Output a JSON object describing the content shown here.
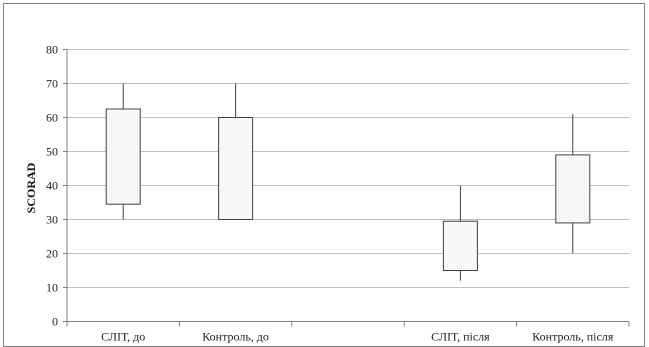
{
  "chart_data": {
    "type": "box",
    "title": "",
    "xlabel": "",
    "ylabel": "SCORAD",
    "ylim": [
      0,
      80
    ],
    "yticks": [
      0,
      10,
      20,
      30,
      40,
      50,
      60,
      70,
      80
    ],
    "grid": true,
    "legend": "none",
    "categories": [
      "СЛІТ, до",
      "Контроль, до",
      "",
      "СЛІТ, після",
      "Контроль, після"
    ],
    "boxes": [
      {
        "category": "СЛІТ, до",
        "min": 30,
        "q1": 34.5,
        "q3": 62.5,
        "max": 70
      },
      {
        "category": "Контроль, до",
        "min": 30,
        "q1": 30,
        "q3": 60,
        "max": 70
      },
      {
        "category": "СЛІТ, після",
        "min": 12,
        "q1": 15,
        "q3": 29.5,
        "max": 40
      },
      {
        "category": "Контроль, після",
        "min": 20,
        "q1": 29,
        "q3": 49,
        "max": 61
      }
    ],
    "colors": {
      "box_fill": "#f7f7f7",
      "box_stroke": "#404040",
      "whisker": "#404040",
      "grid": "#bfbfbf",
      "axis": "#7f7f7f"
    }
  }
}
